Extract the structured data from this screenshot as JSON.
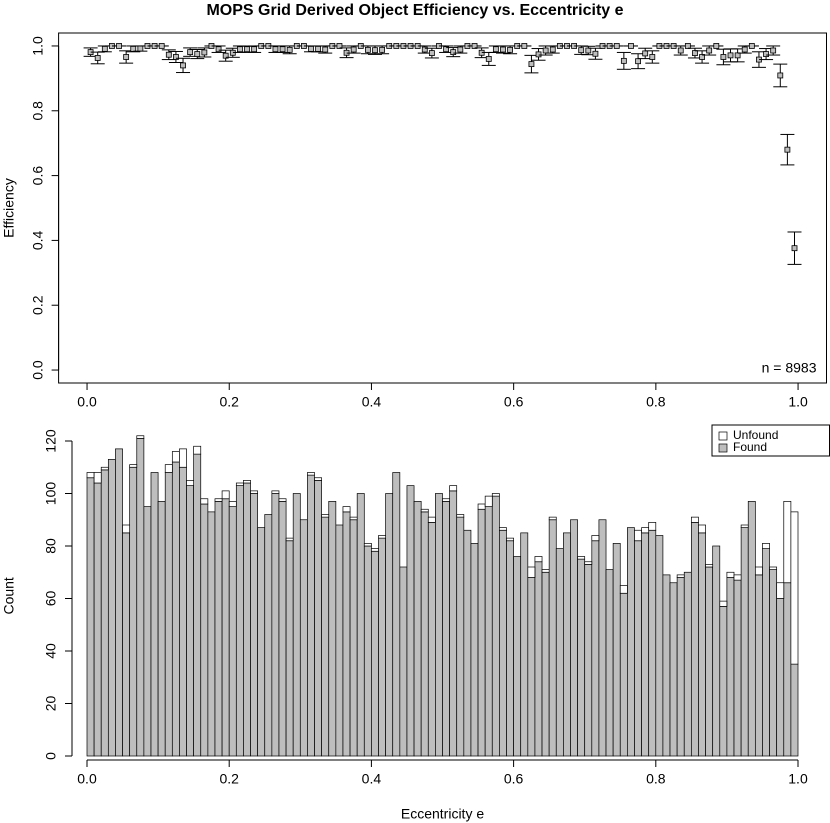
{
  "chart_data": [
    {
      "type": "scatter",
      "title": "MOPS Grid Derived Object Efficiency vs. Eccentricity e",
      "y_label": "Efficiency",
      "annotation": "n = 8983",
      "x": [
        0.005,
        0.015,
        0.025,
        0.035,
        0.045,
        0.055,
        0.065,
        0.075,
        0.085,
        0.095,
        0.105,
        0.115,
        0.125,
        0.135,
        0.145,
        0.155,
        0.165,
        0.175,
        0.185,
        0.195,
        0.205,
        0.215,
        0.225,
        0.235,
        0.245,
        0.255,
        0.265,
        0.275,
        0.285,
        0.295,
        0.305,
        0.315,
        0.325,
        0.335,
        0.345,
        0.355,
        0.365,
        0.375,
        0.385,
        0.395,
        0.405,
        0.415,
        0.425,
        0.435,
        0.445,
        0.455,
        0.465,
        0.475,
        0.485,
        0.495,
        0.505,
        0.515,
        0.525,
        0.535,
        0.545,
        0.555,
        0.565,
        0.575,
        0.585,
        0.595,
        0.605,
        0.615,
        0.625,
        0.635,
        0.645,
        0.655,
        0.665,
        0.675,
        0.685,
        0.695,
        0.705,
        0.715,
        0.725,
        0.735,
        0.745,
        0.755,
        0.765,
        0.775,
        0.785,
        0.795,
        0.805,
        0.815,
        0.825,
        0.835,
        0.845,
        0.855,
        0.865,
        0.875,
        0.885,
        0.895,
        0.905,
        0.915,
        0.925,
        0.935,
        0.945,
        0.955,
        0.965,
        0.975,
        0.985,
        0.995
      ],
      "values": [
        0.981,
        0.963,
        0.991,
        1,
        1,
        0.966,
        0.991,
        0.992,
        1,
        1,
        1,
        0.973,
        0.966,
        0.94,
        0.981,
        0.975,
        0.98,
        1,
        0.99,
        0.97,
        0.979,
        0.99,
        0.99,
        0.99,
        1,
        1,
        0.99,
        0.99,
        0.988,
        1,
        1,
        0.991,
        0.991,
        0.989,
        1,
        1,
        0.979,
        0.989,
        1,
        0.988,
        0.987,
        0.988,
        1,
        1,
        1,
        1,
        1,
        0.989,
        0.978,
        1,
        0.99,
        0.981,
        0.989,
        1,
        1,
        0.979,
        0.96,
        0.99,
        0.989,
        0.988,
        1,
        1,
        0.944,
        0.974,
        0.986,
        0.989,
        1,
        1,
        1,
        0.987,
        0.986,
        0.976,
        1,
        1,
        1,
        0.954,
        1,
        0.953,
        0.977,
        0.966,
        1,
        1,
        1,
        0.986,
        1,
        0.978,
        0.966,
        0.986,
        1,
        0.966,
        0.971,
        0.971,
        0.989,
        1,
        0.958,
        0.975,
        0.986,
        0.909,
        0.68,
        0.376
      ],
      "errors": [
        0.013,
        0.018,
        0.009,
        0,
        0,
        0.019,
        0.009,
        0.008,
        0,
        0,
        0,
        0.015,
        0.017,
        0.022,
        0.013,
        0.014,
        0.014,
        0,
        0.01,
        0.017,
        0.014,
        0.01,
        0.009,
        0.01,
        0,
        0,
        0.01,
        0.01,
        0.012,
        0,
        0,
        0.009,
        0.009,
        0.011,
        0,
        0,
        0.015,
        0.011,
        0,
        0.012,
        0.013,
        0.012,
        0,
        0,
        0,
        0,
        0,
        0.011,
        0.015,
        0,
        0.01,
        0.014,
        0.011,
        0,
        0,
        0.015,
        0.02,
        0.01,
        0.011,
        0.012,
        0,
        0,
        0.027,
        0.018,
        0.014,
        0.011,
        0,
        0,
        0,
        0.013,
        0.013,
        0.017,
        0,
        0,
        0,
        0.026,
        0,
        0.023,
        0.016,
        0.019,
        0,
        0,
        0,
        0.014,
        0,
        0.015,
        0.019,
        0.014,
        0,
        0.024,
        0.02,
        0.02,
        0.011,
        0,
        0.024,
        0.017,
        0.014,
        0.035,
        0.047,
        0.05
      ],
      "color": "#bebebe",
      "xlim": [
        -0.04,
        1.04
      ],
      "ylim": [
        -0.04,
        1.04
      ],
      "xticks": [
        {
          "value": 0,
          "label": "0.0"
        },
        0.2,
        0.4,
        0.6,
        0.8,
        {
          "value": 1,
          "label": "1.0"
        }
      ],
      "yticks": [
        {
          "value": 0,
          "label": "0.0"
        },
        0.2,
        0.4,
        0.6,
        0.8,
        {
          "value": 1,
          "label": "1.0"
        }
      ]
    },
    {
      "type": "histogram",
      "x_label": "Eccentricity e",
      "y_label": "Count",
      "bins": [
        0,
        0.01,
        0.02,
        0.03,
        0.04,
        0.05,
        0.06,
        0.07,
        0.08,
        0.09,
        0.1,
        0.11,
        0.12,
        0.13,
        0.14,
        0.15,
        0.16,
        0.17,
        0.18,
        0.19,
        0.2,
        0.21,
        0.22,
        0.23,
        0.24,
        0.25,
        0.26,
        0.27,
        0.28,
        0.29,
        0.3,
        0.31,
        0.32,
        0.33,
        0.34,
        0.35,
        0.36,
        0.37,
        0.38,
        0.39,
        0.4,
        0.41,
        0.42,
        0.43,
        0.44,
        0.45,
        0.46,
        0.47,
        0.48,
        0.49,
        0.5,
        0.51,
        0.52,
        0.53,
        0.54,
        0.55,
        0.56,
        0.57,
        0.58,
        0.59,
        0.6,
        0.61,
        0.62,
        0.63,
        0.64,
        0.65,
        0.66,
        0.67,
        0.68,
        0.69,
        0.7,
        0.71,
        0.72,
        0.73,
        0.74,
        0.75,
        0.76,
        0.77,
        0.78,
        0.79,
        0.8,
        0.81,
        0.82,
        0.83,
        0.84,
        0.85,
        0.86,
        0.87,
        0.88,
        0.89,
        0.9,
        0.91,
        0.92,
        0.93,
        0.94,
        0.95,
        0.96,
        0.97,
        0.98,
        0.99,
        1
      ],
      "series": [
        {
          "name": "Found",
          "color": "#bebebe",
          "values": [
            106,
            104,
            109,
            113,
            117,
            85,
            110,
            121,
            95,
            108,
            97,
            108,
            112,
            110,
            103,
            115,
            96,
            93,
            97,
            98,
            95,
            103,
            104,
            100,
            87,
            92,
            100,
            97,
            82,
            100,
            90,
            107,
            105,
            91,
            97,
            88,
            93,
            90,
            100,
            80,
            78,
            83,
            100,
            108,
            72,
            103,
            97,
            93,
            89,
            100,
            97,
            101,
            91,
            86,
            81,
            94,
            95,
            99,
            86,
            82,
            76,
            85,
            68,
            74,
            70,
            90,
            79,
            85,
            90,
            75,
            73,
            82,
            90,
            71,
            81,
            62,
            87,
            82,
            85,
            86,
            84,
            69,
            66,
            68,
            70,
            89,
            85,
            72,
            80,
            57,
            68,
            67,
            87,
            97,
            69,
            79,
            71,
            60,
            66,
            35
          ]
        },
        {
          "name": "Unfound",
          "color": "#ffffff",
          "values": [
            2,
            4,
            1,
            0,
            0,
            3,
            1,
            1,
            0,
            0,
            0,
            3,
            4,
            7,
            2,
            3,
            2,
            0,
            1,
            3,
            2,
            1,
            1,
            1,
            0,
            0,
            1,
            1,
            1,
            0,
            0,
            1,
            1,
            1,
            0,
            0,
            2,
            1,
            0,
            1,
            1,
            1,
            0,
            0,
            0,
            0,
            0,
            1,
            2,
            0,
            1,
            2,
            1,
            0,
            0,
            2,
            4,
            1,
            1,
            1,
            0,
            0,
            4,
            2,
            1,
            1,
            0,
            0,
            0,
            1,
            1,
            2,
            0,
            0,
            0,
            3,
            0,
            4,
            2,
            3,
            0,
            0,
            0,
            1,
            0,
            2,
            3,
            1,
            0,
            2,
            2,
            2,
            1,
            0,
            3,
            2,
            1,
            6,
            31,
            58
          ]
        }
      ],
      "legend": "topright",
      "xlim": [
        0,
        1
      ],
      "ylim": [
        0,
        122
      ],
      "xticks": [
        {
          "value": 0,
          "label": "0.0"
        },
        0.2,
        0.4,
        0.6,
        0.8,
        {
          "value": 1,
          "label": "1.0"
        }
      ],
      "yticks": [
        0,
        20,
        40,
        60,
        80,
        100,
        120
      ]
    }
  ]
}
